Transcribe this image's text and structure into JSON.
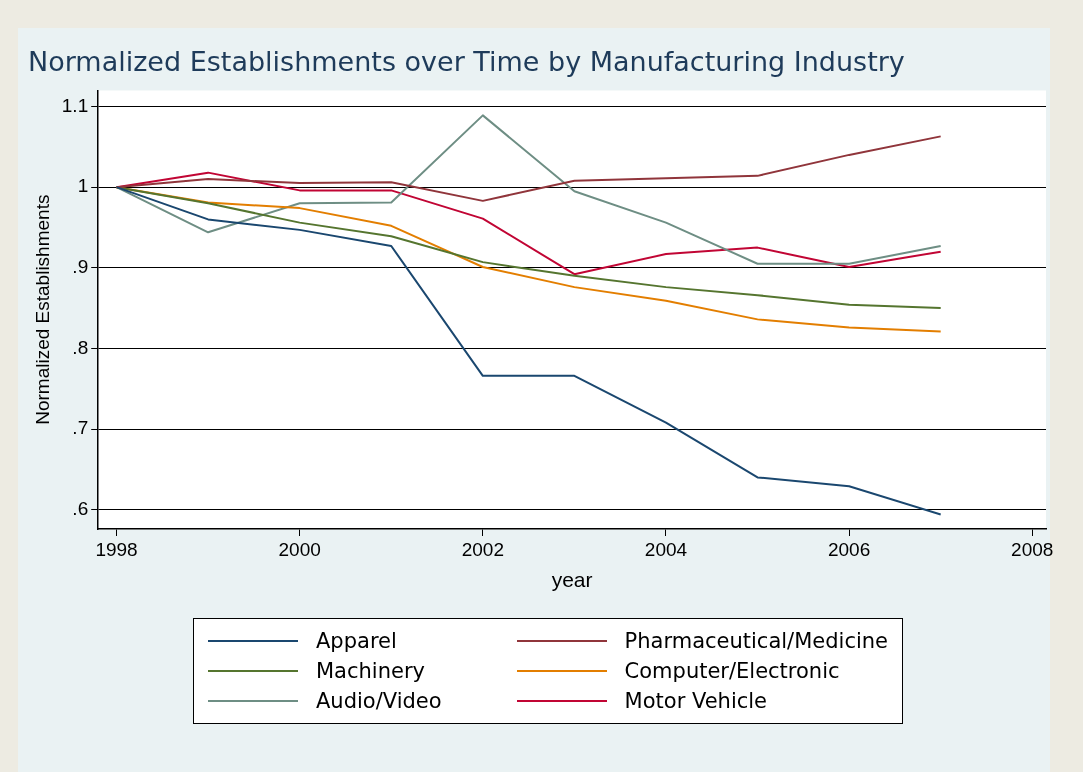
{
  "chart_data": {
    "type": "line",
    "title": "Normalized Establishments over Time by Manufacturing Industry",
    "xlabel": "year",
    "ylabel": "Normalized Establishments",
    "x": [
      1998,
      1999,
      2000,
      2001,
      2002,
      2003,
      2004,
      2005,
      2006,
      2007
    ],
    "series": [
      {
        "name": "Apparel",
        "color": "#1a476f",
        "values": [
          1.0,
          0.96,
          0.947,
          0.927,
          0.766,
          0.766,
          0.708,
          0.64,
          0.629,
          0.594
        ]
      },
      {
        "name": "Pharmaceutical/Medicine",
        "color": "#90353b",
        "values": [
          1.0,
          1.01,
          1.005,
          1.006,
          0.983,
          1.008,
          1.011,
          1.014,
          1.04,
          1.063
        ]
      },
      {
        "name": "Machinery",
        "color": "#55752f",
        "values": [
          1.0,
          0.98,
          0.956,
          0.939,
          0.907,
          0.89,
          0.876,
          0.866,
          0.854,
          0.85
        ]
      },
      {
        "name": "Computer/Electronic",
        "color": "#e37e00",
        "values": [
          1.0,
          0.981,
          0.974,
          0.952,
          0.901,
          0.876,
          0.859,
          0.836,
          0.826,
          0.821
        ]
      },
      {
        "name": "Audio/Video",
        "color": "#6e8e84",
        "values": [
          1.0,
          0.944,
          0.98,
          0.981,
          1.089,
          0.995,
          0.956,
          0.905,
          0.905,
          0.927
        ]
      },
      {
        "name": "Motor Vehicle",
        "color": "#c10534",
        "values": [
          1.0,
          1.018,
          0.996,
          0.996,
          0.961,
          0.892,
          0.917,
          0.925,
          0.901,
          0.92
        ]
      }
    ],
    "xlim": [
      1997.8,
      2008.15
    ],
    "xticks": [
      1998,
      2000,
      2002,
      2004,
      2006,
      2008
    ],
    "ylim": [
      0.576,
      1.12
    ],
    "yticks": [
      {
        "value": 0.6,
        "label": ".6"
      },
      {
        "value": 0.7,
        "label": ".7"
      },
      {
        "value": 0.8,
        "label": ".8"
      },
      {
        "value": 0.9,
        "label": ".9"
      },
      {
        "value": 1,
        "label": "1"
      },
      {
        "value": 1.1,
        "label": "1.1"
      }
    ],
    "grid": "y",
    "legend": "bottom",
    "marker": "none",
    "line_style": "solid"
  }
}
